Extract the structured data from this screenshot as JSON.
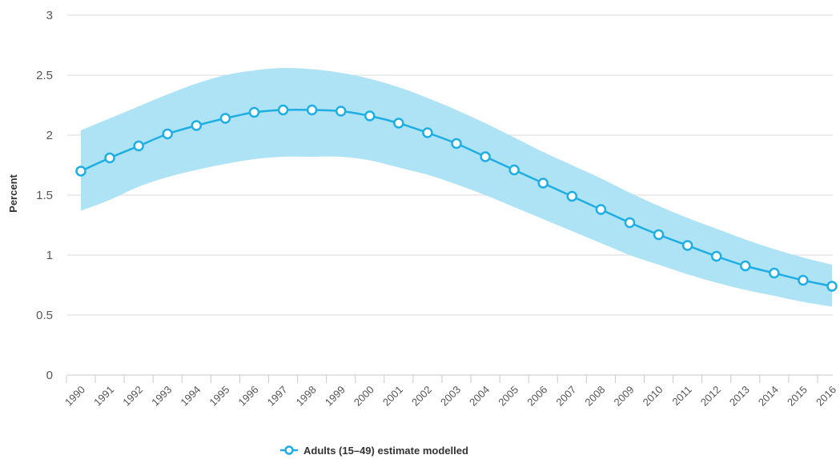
{
  "chart_data": {
    "type": "line",
    "title": "",
    "xlabel": "",
    "ylabel": "Percent",
    "ylim": [
      0,
      3
    ],
    "yticks": [
      "0",
      "0.5",
      "1",
      "1.5",
      "2",
      "2.5",
      "3"
    ],
    "grid": true,
    "legend_position": "bottom-center",
    "x": [
      "1990",
      "1991",
      "1992",
      "1993",
      "1994",
      "1995",
      "1996",
      "1997",
      "1998",
      "1999",
      "2000",
      "2001",
      "2002",
      "2003",
      "2004",
      "2005",
      "2006",
      "2007",
      "2008",
      "2009",
      "2010",
      "2011",
      "2012",
      "2013",
      "2014",
      "2015",
      "2016"
    ],
    "series": [
      {
        "name": "Adults (15–49) estimate modelled",
        "values": [
          1.7,
          1.81,
          1.91,
          2.01,
          2.08,
          2.14,
          2.19,
          2.21,
          2.21,
          2.2,
          2.16,
          2.1,
          2.02,
          1.93,
          1.82,
          1.71,
          1.6,
          1.49,
          1.38,
          1.27,
          1.17,
          1.08,
          0.99,
          0.91,
          0.85,
          0.79,
          0.74
        ],
        "lower": [
          1.37,
          1.46,
          1.57,
          1.65,
          1.71,
          1.76,
          1.8,
          1.82,
          1.82,
          1.82,
          1.79,
          1.73,
          1.67,
          1.59,
          1.5,
          1.4,
          1.3,
          1.2,
          1.1,
          1.0,
          0.92,
          0.84,
          0.77,
          0.71,
          0.66,
          0.61,
          0.57
        ],
        "upper": [
          2.04,
          2.14,
          2.24,
          2.34,
          2.43,
          2.5,
          2.54,
          2.56,
          2.55,
          2.52,
          2.47,
          2.4,
          2.31,
          2.21,
          2.1,
          1.98,
          1.86,
          1.75,
          1.64,
          1.52,
          1.41,
          1.31,
          1.22,
          1.13,
          1.05,
          0.98,
          0.92
        ],
        "color": "#1eaee3",
        "band_color": "#aee3f5",
        "marker_fill": "#ffffff"
      }
    ]
  },
  "colors": {
    "gridline": "#d9d9d9",
    "axis": "#c9c9c9"
  }
}
